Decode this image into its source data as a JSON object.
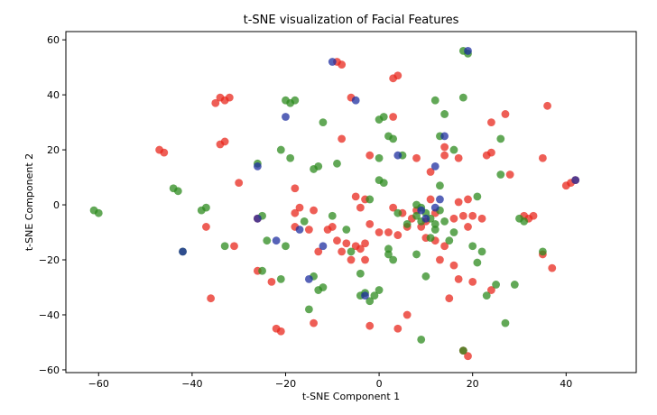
{
  "chart_data": {
    "type": "scatter",
    "title": "t-SNE visualization of Facial Features",
    "xlabel": "t-SNE Component 1",
    "ylabel": "t-SNE Component 2",
    "xlim": [
      -67,
      55
    ],
    "ylim": [
      -61,
      63
    ],
    "xticks": [
      -60,
      -40,
      -20,
      0,
      20,
      40
    ],
    "yticks": [
      -60,
      -40,
      -20,
      0,
      20,
      40,
      60
    ],
    "xtick_labels": [
      "−60",
      "−40",
      "−20",
      "0",
      "20",
      "40"
    ],
    "ytick_labels": [
      "−60",
      "−40",
      "−20",
      "0",
      "20",
      "40",
      "60"
    ],
    "grid": false,
    "legend": "none",
    "colors": {
      "red": "#e8281e",
      "green": "#2e8b1f",
      "blue": "#1f2fa0"
    },
    "series": [
      {
        "color": "red",
        "points": [
          [
            -34,
            39
          ],
          [
            -33,
            38
          ],
          [
            -35,
            37
          ],
          [
            -32,
            39
          ],
          [
            -34,
            22
          ],
          [
            -33,
            23
          ],
          [
            -46,
            19
          ],
          [
            -47,
            20
          ],
          [
            -9,
            52
          ],
          [
            -8,
            51
          ],
          [
            3,
            46
          ],
          [
            4,
            47
          ],
          [
            -30,
            8
          ],
          [
            -26,
            -5
          ],
          [
            -18,
            6
          ],
          [
            -17,
            -1
          ],
          [
            -18,
            -8
          ],
          [
            -22,
            -45
          ],
          [
            -21,
            -46
          ],
          [
            -14,
            -43
          ],
          [
            -14,
            -2
          ],
          [
            -11,
            -9
          ],
          [
            -9,
            -13
          ],
          [
            -7,
            -14
          ],
          [
            -5,
            -15
          ],
          [
            -4,
            -16
          ],
          [
            -3,
            -14
          ],
          [
            -5,
            3
          ],
          [
            -3,
            2
          ],
          [
            -4,
            -1
          ],
          [
            -2,
            -7
          ],
          [
            0,
            -10
          ],
          [
            2,
            -10
          ],
          [
            4,
            -11
          ],
          [
            6,
            -8
          ],
          [
            3,
            -1
          ],
          [
            5,
            -3
          ],
          [
            7,
            -5
          ],
          [
            8,
            -2
          ],
          [
            9,
            -8
          ],
          [
            10,
            -6
          ],
          [
            8,
            17
          ],
          [
            11,
            12
          ],
          [
            14,
            18
          ],
          [
            17,
            17
          ],
          [
            14,
            21
          ],
          [
            13,
            -20
          ],
          [
            16,
            -22
          ],
          [
            15,
            -34
          ],
          [
            17,
            -27
          ],
          [
            18,
            -53
          ],
          [
            19,
            -55
          ],
          [
            20,
            -28
          ],
          [
            24,
            -31
          ],
          [
            22,
            -5
          ],
          [
            20,
            -4
          ],
          [
            18,
            -4
          ],
          [
            16,
            -5
          ],
          [
            17,
            1
          ],
          [
            19,
            2
          ],
          [
            23,
            18
          ],
          [
            24,
            19
          ],
          [
            27,
            33
          ],
          [
            28,
            11
          ],
          [
            32,
            -5
          ],
          [
            31,
            -4
          ],
          [
            33,
            -4
          ],
          [
            35,
            17
          ],
          [
            36,
            36
          ],
          [
            35,
            -18
          ],
          [
            37,
            -23
          ],
          [
            40,
            7
          ],
          [
            42,
            9
          ],
          [
            41,
            8
          ],
          [
            -37,
            -8
          ],
          [
            -31,
            -15
          ],
          [
            -36,
            -34
          ],
          [
            -23,
            -28
          ],
          [
            -10,
            -8
          ],
          [
            -8,
            -17
          ],
          [
            -6,
            39
          ],
          [
            -8,
            24
          ],
          [
            -6,
            -20
          ],
          [
            -3,
            -20
          ],
          [
            3,
            32
          ],
          [
            12,
            -13
          ],
          [
            14,
            -15
          ],
          [
            24,
            30
          ],
          [
            4,
            -45
          ],
          [
            -2,
            -44
          ],
          [
            12,
            -3
          ],
          [
            10,
            -12
          ],
          [
            19,
            -8
          ],
          [
            -13,
            -17
          ],
          [
            -15,
            -9
          ],
          [
            -2,
            18
          ],
          [
            11,
            2
          ],
          [
            6,
            -40
          ],
          [
            -18,
            -3
          ],
          [
            -26,
            -24
          ]
        ]
      },
      {
        "color": "green",
        "points": [
          [
            -61,
            -2
          ],
          [
            -60,
            -3
          ],
          [
            -43,
            5
          ],
          [
            -44,
            6
          ],
          [
            -42,
            -17
          ],
          [
            -37,
            -1
          ],
          [
            -38,
            -2
          ],
          [
            -33,
            -15
          ],
          [
            -25,
            -4
          ],
          [
            -26,
            15
          ],
          [
            -20,
            38
          ],
          [
            -19,
            37
          ],
          [
            -12,
            30
          ],
          [
            -19,
            17
          ],
          [
            -13,
            14
          ],
          [
            -14,
            13
          ],
          [
            -9,
            15
          ],
          [
            -21,
            20
          ],
          [
            -25,
            -24
          ],
          [
            -21,
            -27
          ],
          [
            -13,
            -31
          ],
          [
            -12,
            -30
          ],
          [
            -14,
            -26
          ],
          [
            -4,
            -33
          ],
          [
            -3,
            -32
          ],
          [
            -1,
            -33
          ],
          [
            0,
            -31
          ],
          [
            -2,
            -35
          ],
          [
            0,
            31
          ],
          [
            1,
            32
          ],
          [
            0,
            9
          ],
          [
            1,
            8
          ],
          [
            2,
            25
          ],
          [
            3,
            24
          ],
          [
            0,
            17
          ],
          [
            2,
            -18
          ],
          [
            3,
            -20
          ],
          [
            2,
            -16
          ],
          [
            6,
            -7
          ],
          [
            8,
            -4
          ],
          [
            9,
            -6
          ],
          [
            9,
            -1
          ],
          [
            10,
            -3
          ],
          [
            11,
            -5
          ],
          [
            12,
            -7
          ],
          [
            13,
            -2
          ],
          [
            12,
            -9
          ],
          [
            11,
            -12
          ],
          [
            15,
            -13
          ],
          [
            13,
            25
          ],
          [
            14,
            33
          ],
          [
            12,
            38
          ],
          [
            13,
            7
          ],
          [
            16,
            20
          ],
          [
            18,
            56
          ],
          [
            19,
            55
          ],
          [
            18,
            39
          ],
          [
            20,
            -15
          ],
          [
            22,
            -17
          ],
          [
            21,
            -21
          ],
          [
            23,
            -33
          ],
          [
            25,
            -29
          ],
          [
            27,
            -43
          ],
          [
            29,
            -29
          ],
          [
            30,
            -5
          ],
          [
            31,
            -6
          ],
          [
            26,
            24
          ],
          [
            26,
            11
          ],
          [
            18,
            -53
          ],
          [
            9,
            -49
          ],
          [
            10,
            -26
          ],
          [
            8,
            -18
          ],
          [
            21,
            3
          ],
          [
            -15,
            -38
          ],
          [
            -18,
            38
          ],
          [
            -10,
            -4
          ],
          [
            -20,
            -15
          ],
          [
            -24,
            -13
          ],
          [
            5,
            18
          ],
          [
            -2,
            2
          ],
          [
            4,
            -3
          ],
          [
            8,
            0
          ],
          [
            14,
            -6
          ],
          [
            -6,
            -17
          ],
          [
            -4,
            -25
          ],
          [
            -7,
            -9
          ],
          [
            35,
            -17
          ],
          [
            -16,
            -6
          ],
          [
            16,
            -10
          ]
        ]
      },
      {
        "color": "blue",
        "points": [
          [
            -10,
            52
          ],
          [
            -20,
            32
          ],
          [
            -5,
            38
          ],
          [
            -26,
            14
          ],
          [
            -22,
            -13
          ],
          [
            -42,
            -17
          ],
          [
            -12,
            -15
          ],
          [
            -17,
            -9
          ],
          [
            12,
            14
          ],
          [
            14,
            25
          ],
          [
            19,
            56
          ],
          [
            42,
            9
          ],
          [
            -15,
            -27
          ],
          [
            -3,
            -33
          ],
          [
            10,
            -5
          ],
          [
            12,
            -1
          ],
          [
            13,
            2
          ],
          [
            4,
            18
          ],
          [
            -26,
            -5
          ],
          [
            9,
            -2
          ]
        ]
      }
    ]
  }
}
